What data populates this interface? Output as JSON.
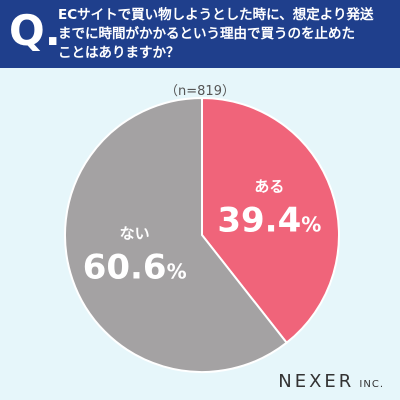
{
  "header": {
    "q": "Q.",
    "question": "ECサイトで買い物しようとした時に、想定より発送\nまでに時間がかかるという理由で買うのを止めた\nことはありますか？"
  },
  "sample": "（n=819）",
  "colors": {
    "header": "#1f3f8c",
    "aru": "#f0647a",
    "nai": "#a4a2a3",
    "background": "#e6f6fa"
  },
  "chart_data": {
    "type": "pie",
    "title": "",
    "slices": [
      {
        "label": "ある",
        "value": 39.4,
        "display": "39.4",
        "color": "#f0647a"
      },
      {
        "label": "ない",
        "value": 60.6,
        "display": "60.6",
        "color": "#a4a2a3"
      }
    ],
    "unit": "%"
  },
  "brand": {
    "main": "NEXER",
    "sub": "INC."
  }
}
